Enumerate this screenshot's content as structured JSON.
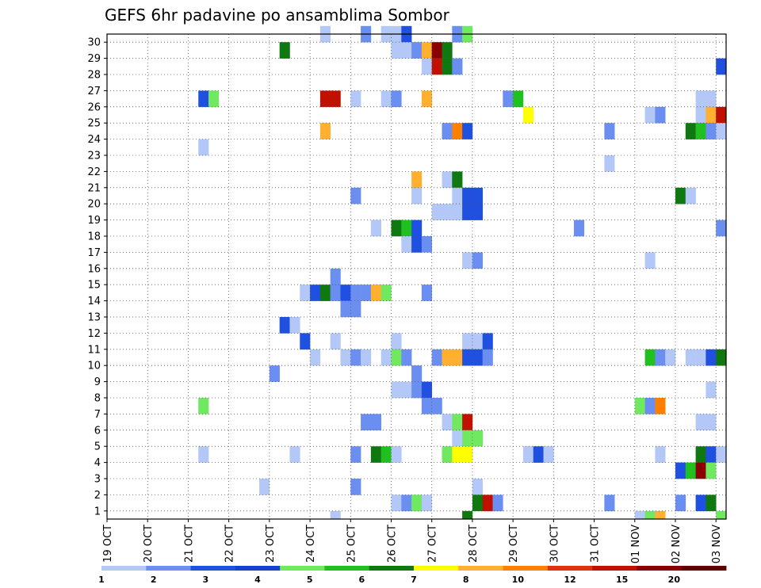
{
  "chart_data": {
    "type": "heatmap",
    "title": "GEFS 6hr padavine po ansamblima Sombor",
    "xlabel": "",
    "ylabel": "",
    "x_tick_labels": [
      "19 OCT",
      "20 OCT",
      "21 OCT",
      "22 OCT",
      "23 OCT",
      "24 OCT",
      "25 OCT",
      "26 OCT",
      "27 OCT",
      "28 OCT",
      "29 OCT",
      "30 OCT",
      "31 OCT",
      "01 NOV",
      "02 NOV",
      "03 NOV"
    ],
    "y_tick_labels": [
      "1",
      "2",
      "3",
      "4",
      "5",
      "6",
      "7",
      "8",
      "9",
      "10",
      "11",
      "12",
      "13",
      "14",
      "15",
      "16",
      "17",
      "18",
      "19",
      "20",
      "21",
      "22",
      "23",
      "24",
      "25",
      "26",
      "27",
      "28",
      "29",
      "30"
    ],
    "x_range_steps": [
      0,
      61
    ],
    "y_range_members": [
      0,
      30
    ],
    "x_step_hours": 6,
    "grid": true,
    "legend_position": "bottom",
    "colorbar": {
      "colors": [
        "#b4c8f8",
        "#6b8ff0",
        "#2050e0",
        "#1540d0",
        "#70e860",
        "#20c020",
        "#107810",
        "#ffff00",
        "#ffb030",
        "#ff8000",
        "#e03010",
        "#c01000",
        "#8a0000",
        "#600000"
      ],
      "labels": [
        "1",
        "2",
        "3",
        "4",
        "5",
        "6",
        "7",
        "8",
        "10",
        "12",
        "15",
        "20"
      ]
    },
    "cells": [
      {
        "member": 30,
        "step": 21,
        "value": 1
      },
      {
        "member": 30,
        "step": 25,
        "value": 2
      },
      {
        "member": 30,
        "step": 27,
        "value": 1
      },
      {
        "member": 30,
        "step": 28,
        "value": 1
      },
      {
        "member": 30,
        "step": 29,
        "value": 3
      },
      {
        "member": 30,
        "step": 34,
        "value": 2
      },
      {
        "member": 30,
        "step": 35,
        "value": 5
      },
      {
        "member": 29,
        "step": 17,
        "value": 7
      },
      {
        "member": 29,
        "step": 28,
        "value": 1
      },
      {
        "member": 29,
        "step": 29,
        "value": 1
      },
      {
        "member": 29,
        "step": 30,
        "value": 2
      },
      {
        "member": 29,
        "step": 31,
        "value": 10
      },
      {
        "member": 29,
        "step": 32,
        "value": 20
      },
      {
        "member": 29,
        "step": 33,
        "value": 7
      },
      {
        "member": 28,
        "step": 31,
        "value": 1
      },
      {
        "member": 28,
        "step": 32,
        "value": 15
      },
      {
        "member": 28,
        "step": 33,
        "value": 7
      },
      {
        "member": 28,
        "step": 34,
        "value": 2
      },
      {
        "member": 28,
        "step": 60,
        "value": 3
      },
      {
        "member": 26,
        "step": 9,
        "value": 3
      },
      {
        "member": 26,
        "step": 10,
        "value": 5
      },
      {
        "member": 26,
        "step": 21,
        "value": 15
      },
      {
        "member": 26,
        "step": 22,
        "value": 15
      },
      {
        "member": 26,
        "step": 24,
        "value": 1
      },
      {
        "member": 26,
        "step": 27,
        "value": 1
      },
      {
        "member": 26,
        "step": 28,
        "value": 2
      },
      {
        "member": 26,
        "step": 31,
        "value": 10
      },
      {
        "member": 26,
        "step": 39,
        "value": 2
      },
      {
        "member": 26,
        "step": 40,
        "value": 6
      },
      {
        "member": 26,
        "step": 58,
        "value": 1
      },
      {
        "member": 26,
        "step": 59,
        "value": 1
      },
      {
        "member": 25,
        "step": 41,
        "value": 8
      },
      {
        "member": 25,
        "step": 53,
        "value": 1
      },
      {
        "member": 25,
        "step": 54,
        "value": 2
      },
      {
        "member": 25,
        "step": 58,
        "value": 1
      },
      {
        "member": 25,
        "step": 59,
        "value": 10
      },
      {
        "member": 25,
        "step": 60,
        "value": 15
      },
      {
        "member": 24,
        "step": 21,
        "value": 10
      },
      {
        "member": 24,
        "step": 33,
        "value": 2
      },
      {
        "member": 24,
        "step": 34,
        "value": 12
      },
      {
        "member": 24,
        "step": 35,
        "value": 3
      },
      {
        "member": 24,
        "step": 49,
        "value": 2
      },
      {
        "member": 24,
        "step": 57,
        "value": 7
      },
      {
        "member": 24,
        "step": 58,
        "value": 6
      },
      {
        "member": 24,
        "step": 59,
        "value": 2
      },
      {
        "member": 24,
        "step": 60,
        "value": 1
      },
      {
        "member": 23,
        "step": 9,
        "value": 1
      },
      {
        "member": 22,
        "step": 49,
        "value": 1
      },
      {
        "member": 21,
        "step": 30,
        "value": 10
      },
      {
        "member": 21,
        "step": 33,
        "value": 1
      },
      {
        "member": 21,
        "step": 34,
        "value": 7
      },
      {
        "member": 20,
        "step": 24,
        "value": 2
      },
      {
        "member": 20,
        "step": 30,
        "value": 1
      },
      {
        "member": 20,
        "step": 34,
        "value": 1
      },
      {
        "member": 20,
        "step": 35,
        "value": 3
      },
      {
        "member": 20,
        "step": 36,
        "value": 3
      },
      {
        "member": 20,
        "step": 56,
        "value": 7
      },
      {
        "member": 20,
        "step": 57,
        "value": 1
      },
      {
        "member": 19,
        "step": 32,
        "value": 1
      },
      {
        "member": 19,
        "step": 33,
        "value": 1
      },
      {
        "member": 19,
        "step": 34,
        "value": 1
      },
      {
        "member": 19,
        "step": 35,
        "value": 3
      },
      {
        "member": 19,
        "step": 36,
        "value": 3
      },
      {
        "member": 18,
        "step": 26,
        "value": 1
      },
      {
        "member": 18,
        "step": 28,
        "value": 7
      },
      {
        "member": 18,
        "step": 29,
        "value": 6
      },
      {
        "member": 18,
        "step": 30,
        "value": 3
      },
      {
        "member": 18,
        "step": 46,
        "value": 2
      },
      {
        "member": 18,
        "step": 60,
        "value": 2
      },
      {
        "member": 17,
        "step": 29,
        "value": 1
      },
      {
        "member": 17,
        "step": 30,
        "value": 3
      },
      {
        "member": 17,
        "step": 31,
        "value": 2
      },
      {
        "member": 16,
        "step": 35,
        "value": 1
      },
      {
        "member": 16,
        "step": 36,
        "value": 2
      },
      {
        "member": 16,
        "step": 53,
        "value": 1
      },
      {
        "member": 15,
        "step": 22,
        "value": 2
      },
      {
        "member": 14,
        "step": 19,
        "value": 1
      },
      {
        "member": 14,
        "step": 20,
        "value": 3
      },
      {
        "member": 14,
        "step": 21,
        "value": 7
      },
      {
        "member": 14,
        "step": 22,
        "value": 2
      },
      {
        "member": 14,
        "step": 23,
        "value": 3
      },
      {
        "member": 14,
        "step": 24,
        "value": 2
      },
      {
        "member": 14,
        "step": 25,
        "value": 2
      },
      {
        "member": 14,
        "step": 26,
        "value": 10
      },
      {
        "member": 14,
        "step": 27,
        "value": 5
      },
      {
        "member": 14,
        "step": 31,
        "value": 2
      },
      {
        "member": 13,
        "step": 23,
        "value": 2
      },
      {
        "member": 13,
        "step": 24,
        "value": 2
      },
      {
        "member": 12,
        "step": 17,
        "value": 3
      },
      {
        "member": 12,
        "step": 18,
        "value": 1
      },
      {
        "member": 11,
        "step": 19,
        "value": 3
      },
      {
        "member": 11,
        "step": 22,
        "value": 1
      },
      {
        "member": 11,
        "step": 28,
        "value": 1
      },
      {
        "member": 11,
        "step": 35,
        "value": 1
      },
      {
        "member": 11,
        "step": 36,
        "value": 1
      },
      {
        "member": 11,
        "step": 37,
        "value": 3
      },
      {
        "member": 10,
        "step": 20,
        "value": 1
      },
      {
        "member": 10,
        "step": 23,
        "value": 1
      },
      {
        "member": 10,
        "step": 24,
        "value": 2
      },
      {
        "member": 10,
        "step": 25,
        "value": 1
      },
      {
        "member": 10,
        "step": 27,
        "value": 1
      },
      {
        "member": 10,
        "step": 28,
        "value": 5
      },
      {
        "member": 10,
        "step": 29,
        "value": 2
      },
      {
        "member": 10,
        "step": 32,
        "value": 2
      },
      {
        "member": 10,
        "step": 33,
        "value": 10
      },
      {
        "member": 10,
        "step": 34,
        "value": 10
      },
      {
        "member": 10,
        "step": 35,
        "value": 3
      },
      {
        "member": 10,
        "step": 36,
        "value": 3
      },
      {
        "member": 10,
        "step": 37,
        "value": 2
      },
      {
        "member": 10,
        "step": 53,
        "value": 6
      },
      {
        "member": 10,
        "step": 54,
        "value": 2
      },
      {
        "member": 10,
        "step": 55,
        "value": 1
      },
      {
        "member": 10,
        "step": 57,
        "value": 1
      },
      {
        "member": 10,
        "step": 58,
        "value": 1
      },
      {
        "member": 10,
        "step": 59,
        "value": 3
      },
      {
        "member": 10,
        "step": 60,
        "value": 7
      },
      {
        "member": 9,
        "step": 16,
        "value": 2
      },
      {
        "member": 9,
        "step": 30,
        "value": 2
      },
      {
        "member": 8,
        "step": 28,
        "value": 1
      },
      {
        "member": 8,
        "step": 29,
        "value": 1
      },
      {
        "member": 8,
        "step": 30,
        "value": 2
      },
      {
        "member": 8,
        "step": 31,
        "value": 3
      },
      {
        "member": 8,
        "step": 59,
        "value": 1
      },
      {
        "member": 7,
        "step": 9,
        "value": 5
      },
      {
        "member": 7,
        "step": 31,
        "value": 2
      },
      {
        "member": 7,
        "step": 32,
        "value": 2
      },
      {
        "member": 7,
        "step": 52,
        "value": 5
      },
      {
        "member": 7,
        "step": 53,
        "value": 2
      },
      {
        "member": 7,
        "step": 54,
        "value": 12
      },
      {
        "member": 6,
        "step": 25,
        "value": 2
      },
      {
        "member": 6,
        "step": 26,
        "value": 2
      },
      {
        "member": 6,
        "step": 33,
        "value": 1
      },
      {
        "member": 6,
        "step": 34,
        "value": 5
      },
      {
        "member": 6,
        "step": 35,
        "value": 15
      },
      {
        "member": 6,
        "step": 58,
        "value": 1
      },
      {
        "member": 6,
        "step": 59,
        "value": 1
      },
      {
        "member": 5,
        "step": 34,
        "value": 1
      },
      {
        "member": 5,
        "step": 35,
        "value": 5
      },
      {
        "member": 5,
        "step": 36,
        "value": 5
      },
      {
        "member": 4,
        "step": 9,
        "value": 1
      },
      {
        "member": 4,
        "step": 18,
        "value": 1
      },
      {
        "member": 4,
        "step": 24,
        "value": 2
      },
      {
        "member": 4,
        "step": 26,
        "value": 7
      },
      {
        "member": 4,
        "step": 27,
        "value": 6
      },
      {
        "member": 4,
        "step": 28,
        "value": 1
      },
      {
        "member": 4,
        "step": 33,
        "value": 5
      },
      {
        "member": 4,
        "step": 34,
        "value": 8
      },
      {
        "member": 4,
        "step": 35,
        "value": 8
      },
      {
        "member": 4,
        "step": 41,
        "value": 1
      },
      {
        "member": 4,
        "step": 42,
        "value": 3
      },
      {
        "member": 4,
        "step": 43,
        "value": 1
      },
      {
        "member": 4,
        "step": 54,
        "value": 1
      },
      {
        "member": 4,
        "step": 58,
        "value": 7
      },
      {
        "member": 4,
        "step": 59,
        "value": 3
      },
      {
        "member": 4,
        "step": 60,
        "value": 1
      },
      {
        "member": 3,
        "step": 56,
        "value": 3
      },
      {
        "member": 3,
        "step": 57,
        "value": 6
      },
      {
        "member": 3,
        "step": 58,
        "value": 20
      },
      {
        "member": 3,
        "step": 59,
        "value": 5
      },
      {
        "member": 2,
        "step": 15,
        "value": 1
      },
      {
        "member": 2,
        "step": 24,
        "value": 2
      },
      {
        "member": 2,
        "step": 36,
        "value": 1
      },
      {
        "member": 1,
        "step": 28,
        "value": 1
      },
      {
        "member": 1,
        "step": 29,
        "value": 2
      },
      {
        "member": 1,
        "step": 30,
        "value": 5
      },
      {
        "member": 1,
        "step": 31,
        "value": 1
      },
      {
        "member": 1,
        "step": 36,
        "value": 7
      },
      {
        "member": 1,
        "step": 37,
        "value": 15
      },
      {
        "member": 1,
        "step": 38,
        "value": 2
      },
      {
        "member": 1,
        "step": 49,
        "value": 2
      },
      {
        "member": 1,
        "step": 56,
        "value": 2
      },
      {
        "member": 1,
        "step": 58,
        "value": 3
      },
      {
        "member": 1,
        "step": 59,
        "value": 7
      },
      {
        "member": 0,
        "step": 22,
        "value": 1
      },
      {
        "member": 0,
        "step": 35,
        "value": 7
      },
      {
        "member": 0,
        "step": 52,
        "value": 1
      },
      {
        "member": 0,
        "step": 53,
        "value": 5
      },
      {
        "member": 0,
        "step": 54,
        "value": 10
      },
      {
        "member": 0,
        "step": 60,
        "value": 5
      }
    ]
  }
}
